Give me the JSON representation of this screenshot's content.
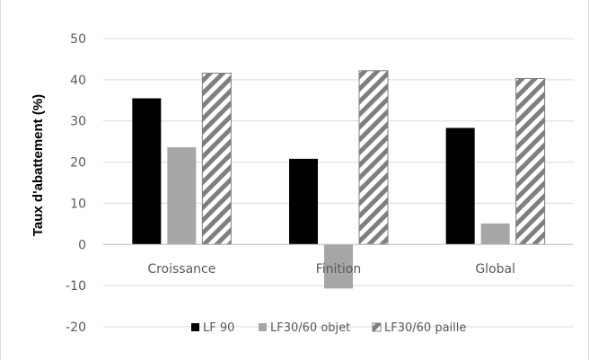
{
  "chart_data": {
    "type": "bar",
    "title": "",
    "xlabel": "",
    "ylabel": "Taux d'abattement (%)",
    "ylim": [
      -20,
      50
    ],
    "yticks": [
      -20,
      -10,
      0,
      10,
      20,
      30,
      40,
      50
    ],
    "grid": true,
    "legend_position": "bottom",
    "categories": [
      "Croissance",
      "Finition",
      "Global"
    ],
    "series": [
      {
        "name": "LF 90",
        "values": [
          35.5,
          20.8,
          28.3
        ],
        "color": "#000000",
        "pattern": "solid"
      },
      {
        "name": "LF30/60 objet",
        "values": [
          23.6,
          -10.7,
          5.1
        ],
        "color": "#a6a6a6",
        "pattern": "solid"
      },
      {
        "name": "LF30/60 paille",
        "values": [
          41.6,
          42.2,
          40.3
        ],
        "color": "#7f7f7f",
        "pattern": "diagonal-stripes"
      }
    ]
  }
}
